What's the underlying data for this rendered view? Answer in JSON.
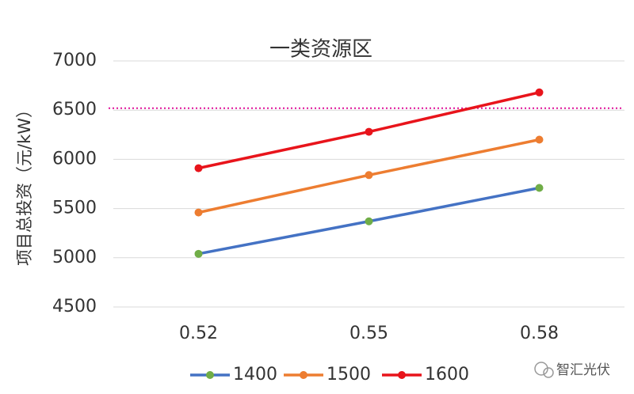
{
  "chart_data": {
    "type": "line",
    "title": "一类资源区",
    "y_label": "项目总投资（元/kW）",
    "categories": [
      "0.52",
      "0.55",
      "0.58"
    ],
    "series": [
      {
        "name": "1400",
        "color": "#4472c4",
        "marker_color": "#70ad47",
        "values": [
          5040,
          5370,
          5710
        ]
      },
      {
        "name": "1500",
        "color": "#ed7d31",
        "marker_color": "#ed7d31",
        "values": [
          5460,
          5840,
          6200
        ]
      },
      {
        "name": "1600",
        "color": "#e8141b",
        "marker_color": "#e8141b",
        "values": [
          5910,
          6280,
          6680
        ]
      }
    ],
    "ylim": [
      4500,
      7000
    ],
    "yticks": [
      4500,
      5000,
      5500,
      6000,
      6500,
      7000
    ],
    "grid": true,
    "reference_line": {
      "value": 6520,
      "color": "#e0109a"
    },
    "legend": "bottom"
  },
  "watermark": "智汇光伏"
}
